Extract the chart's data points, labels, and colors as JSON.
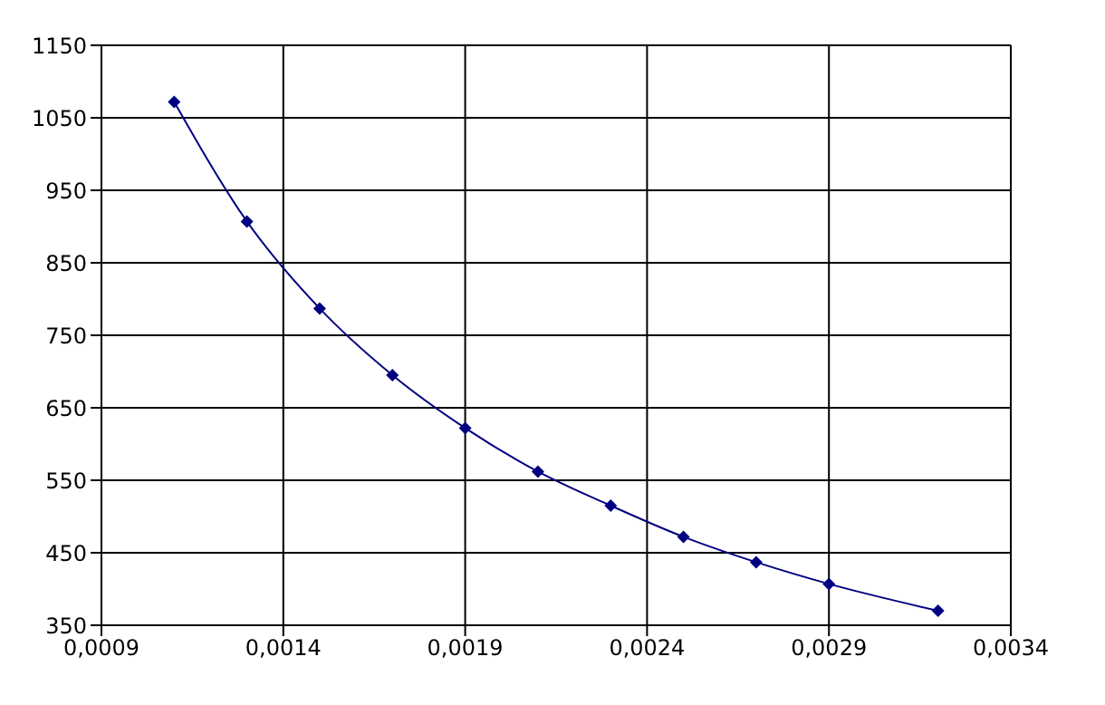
{
  "chart_data": {
    "type": "line",
    "x": [
      0.0011,
      0.0013,
      0.0015,
      0.0017,
      0.0019,
      0.0021,
      0.0023,
      0.0025,
      0.0027,
      0.0029,
      0.0032
    ],
    "series": [
      {
        "color": "#000080",
        "values": [
          1072,
          907,
          787,
          695,
          622,
          562,
          515,
          472,
          437,
          407,
          370
        ]
      }
    ],
    "xlim": [
      0.0009,
      0.0034
    ],
    "xticks": [
      {
        "value": 0.0009,
        "label": "0,0009"
      },
      {
        "value": 0.0014,
        "label": "0,0014"
      },
      {
        "value": 0.0019,
        "label": "0,0019"
      },
      {
        "value": 0.0024,
        "label": "0,0024"
      },
      {
        "value": 0.0029,
        "label": "0,0029"
      },
      {
        "value": 0.0034,
        "label": "0,0034"
      }
    ],
    "ylim": [
      350,
      1150
    ],
    "yticks": [
      350,
      450,
      550,
      650,
      750,
      850,
      950,
      1050,
      1150
    ],
    "grid": true,
    "marker": "diamond",
    "line_style": "solid"
  }
}
